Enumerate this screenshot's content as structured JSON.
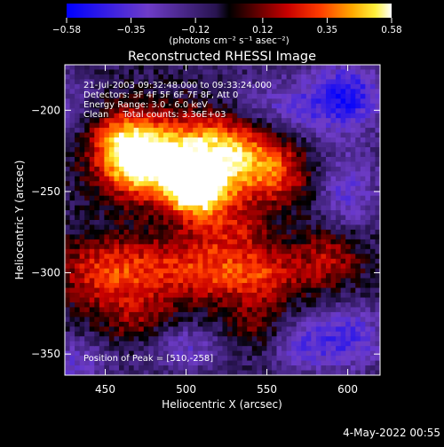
{
  "chart_data": {
    "type": "heatmap",
    "title": "Reconstructed RHESSI Image",
    "xlabel": "Heliocentric X (arcsec)",
    "ylabel": "Heliocentric Y (arcsec)",
    "xlim": [
      425,
      620
    ],
    "ylim": [
      -363,
      -172
    ],
    "x_ticks": [
      450,
      500,
      550,
      600
    ],
    "y_ticks": [
      -200,
      -250,
      -300,
      -350
    ],
    "x_tick_labels": [
      "450",
      "500",
      "550",
      "600"
    ],
    "y_tick_labels": [
      "−200",
      "−250",
      "−300",
      "−350"
    ],
    "colorbar": {
      "range": [
        -0.58,
        0.58
      ],
      "ticks": [
        -0.58,
        -0.35,
        -0.12,
        0.12,
        0.35,
        0.58
      ],
      "tick_labels": [
        "−0.58",
        "−0.35",
        "−0.12",
        "0.12",
        "0.35",
        "0.58"
      ],
      "colormap": "blue-purple-black-red-yellow-white",
      "unit_label": "(photons cm⁻² s⁻¹ asec⁻²)"
    },
    "annotations": [
      "21-Jul-2003 09:32:48.000 to 09:33:24.000",
      "Detectors: 3F 4F 5F 6F 7F 8F, Att 0",
      "Energy Range: 3.0 - 6.0 keV",
      "Clean     Total counts: 3.36E+03"
    ],
    "peak": {
      "x": 510,
      "y": -258,
      "label": "Position of Peak = [510,-258]"
    },
    "sources": [
      {
        "x": 490,
        "y": -230,
        "value": 0.52,
        "sx": 30,
        "sy": 20
      },
      {
        "x": 505,
        "y": -250,
        "value": 0.55,
        "sx": 12,
        "sy": 10
      },
      {
        "x": 530,
        "y": -228,
        "value": 0.45,
        "sx": 22,
        "sy": 18
      },
      {
        "x": 470,
        "y": -232,
        "value": 0.4,
        "sx": 14,
        "sy": 12
      },
      {
        "x": 458,
        "y": -215,
        "value": 0.28,
        "sx": 14,
        "sy": 12
      },
      {
        "x": 560,
        "y": -240,
        "value": 0.22,
        "sx": 14,
        "sy": 14
      },
      {
        "x": 450,
        "y": -300,
        "value": 0.34,
        "sx": 22,
        "sy": 16
      },
      {
        "x": 500,
        "y": -298,
        "value": 0.3,
        "sx": 26,
        "sy": 14
      },
      {
        "x": 545,
        "y": -302,
        "value": 0.32,
        "sx": 22,
        "sy": 14
      },
      {
        "x": 590,
        "y": -290,
        "value": 0.25,
        "sx": 14,
        "sy": 14
      },
      {
        "x": 525,
        "y": -272,
        "value": 0.22,
        "sx": 18,
        "sy": 12
      },
      {
        "x": 470,
        "y": -330,
        "value": 0.2,
        "sx": 16,
        "sy": 12
      },
      {
        "x": 540,
        "y": -335,
        "value": 0.16,
        "sx": 18,
        "sy": 10
      },
      {
        "x": 560,
        "y": -200,
        "value": -0.25,
        "sx": 30,
        "sy": 14
      },
      {
        "x": 600,
        "y": -190,
        "value": -0.35,
        "sx": 16,
        "sy": 14
      },
      {
        "x": 430,
        "y": -200,
        "value": -0.15,
        "sx": 12,
        "sy": 16
      },
      {
        "x": 600,
        "y": -250,
        "value": -0.25,
        "sx": 14,
        "sy": 18
      },
      {
        "x": 600,
        "y": -340,
        "value": -0.3,
        "sx": 18,
        "sy": 14
      },
      {
        "x": 570,
        "y": -345,
        "value": -0.2,
        "sx": 14,
        "sy": 12
      },
      {
        "x": 500,
        "y": -345,
        "value": -0.22,
        "sx": 20,
        "sy": 10
      },
      {
        "x": 430,
        "y": -355,
        "value": -0.22,
        "sx": 16,
        "sy": 10
      }
    ],
    "background": -0.08
  },
  "footer": {
    "date": "4-May-2022 00:55"
  }
}
